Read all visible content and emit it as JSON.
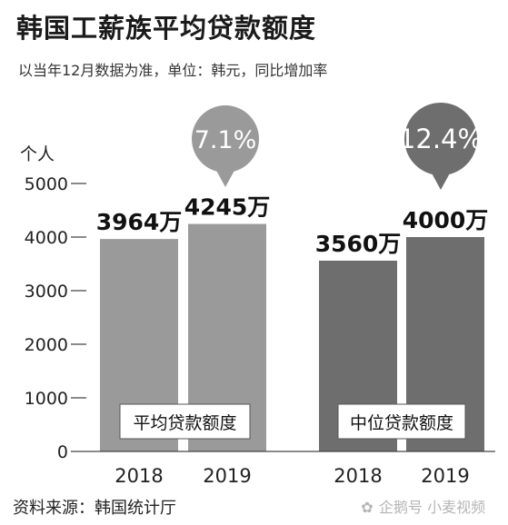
{
  "title": "韩国工薪族平均贷款额度",
  "subtitle": "以当年12月数据为准，单位：韩元，同比增加率",
  "source": "资料来源：韩国统计厅",
  "watermark": "企鹅号 小麦视频",
  "colors": {
    "avg_bar": "#9a9a9a",
    "median_bar": "#6e6e6e",
    "avg_bubble": "#9a9a9a",
    "median_bubble": "#6e6e6e",
    "axis": "#444444"
  },
  "chart_data": {
    "type": "bar",
    "ylabel": "个人",
    "ylim": [
      0,
      5000
    ],
    "yticks": [
      0,
      1000,
      2000,
      3000,
      4000,
      5000
    ],
    "groups": [
      {
        "name": "平均贷款额度",
        "growth_label": "7.1%",
        "bars": [
          {
            "category": "2018",
            "value": 3964,
            "label": "3964万"
          },
          {
            "category": "2019",
            "value": 4245,
            "label": "4245万"
          }
        ]
      },
      {
        "name": "中位贷款额度",
        "growth_label": "12.4%",
        "bars": [
          {
            "category": "2018",
            "value": 3560,
            "label": "3560万"
          },
          {
            "category": "2019",
            "value": 4000,
            "label": "4000万"
          }
        ]
      }
    ]
  }
}
